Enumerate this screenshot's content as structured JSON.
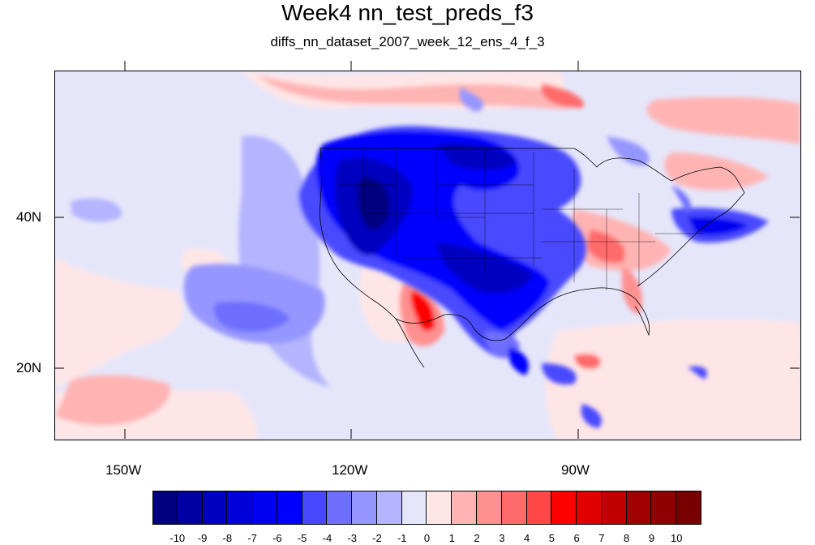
{
  "title": "Week4 nn_test_preds_f3",
  "subtitle": "diffs_nn_dataset_2007_week_12_ens_4_f_3",
  "x_tick_labels": [
    "150W",
    "120W",
    "90W"
  ],
  "y_tick_labels": [
    "40N",
    "20N"
  ],
  "map": {
    "lon_range": [
      -159.3,
      -61.1
    ],
    "lat_range": [
      10.5,
      58.5
    ],
    "projection": "cylindrical-equidistant",
    "field_description_colors": {
      "background": "#e8e8fb"
    }
  },
  "colorbar": {
    "levels": [
      "-10",
      "-9",
      "-8",
      "-7",
      "-6",
      "-5",
      "-4",
      "-3",
      "-2",
      "-1",
      "0",
      "1",
      "2",
      "3",
      "4",
      "5",
      "6",
      "7",
      "8",
      "9",
      "10"
    ],
    "colors": [
      "#000080",
      "#0000a0",
      "#0000c0",
      "#0000d8",
      "#0000f0",
      "#0000ff",
      "#4848ff",
      "#6e6eff",
      "#9696ff",
      "#b4b4ff",
      "#e6e6fa",
      "#ffe6e6",
      "#ffb4b4",
      "#ff9090",
      "#ff6a6a",
      "#ff4848",
      "#ff0000",
      "#e00000",
      "#c00000",
      "#a00000",
      "#900000",
      "#780000"
    ]
  }
}
